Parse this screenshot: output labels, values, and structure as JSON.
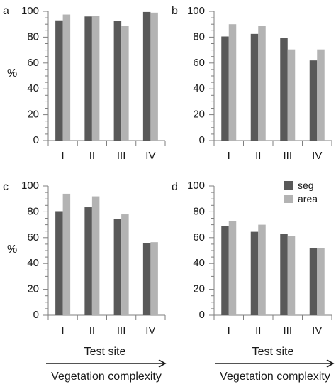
{
  "figure": {
    "xlabel": "Test site",
    "arrow_label": "Vegetation complexity",
    "ylabel": "%",
    "colors": {
      "seg": "#595959",
      "area": "#b3b3b3",
      "axis": "#7f7f7f"
    }
  },
  "legend": {
    "items": [
      {
        "name": "seg",
        "color": "#595959"
      },
      {
        "name": "area",
        "color": "#b3b3b3"
      }
    ]
  },
  "chart_data": [
    {
      "type": "bar",
      "panel": "a",
      "categories": [
        "I",
        "II",
        "III",
        "IV"
      ],
      "series": [
        {
          "name": "seg",
          "values": [
            93,
            96,
            92.5,
            99.5
          ]
        },
        {
          "name": "area",
          "values": [
            97.5,
            96.5,
            89,
            99
          ]
        }
      ],
      "ylabel": "%",
      "ylim": [
        0,
        100
      ],
      "yticks": [
        "0",
        "20",
        "40",
        "60",
        "80",
        "100"
      ]
    },
    {
      "type": "bar",
      "panel": "b",
      "categories": [
        "I",
        "II",
        "III",
        "IV"
      ],
      "series": [
        {
          "name": "seg",
          "values": [
            80.5,
            82.5,
            79.5,
            62
          ]
        },
        {
          "name": "area",
          "values": [
            90,
            89,
            70.5,
            70.5
          ]
        }
      ],
      "ylim": [
        0,
        100
      ],
      "yticks": [
        "0",
        "20",
        "40",
        "60",
        "80",
        "100"
      ]
    },
    {
      "type": "bar",
      "panel": "c",
      "categories": [
        "I",
        "II",
        "III",
        "IV"
      ],
      "series": [
        {
          "name": "seg",
          "values": [
            80.5,
            83.5,
            74.5,
            55.5
          ]
        },
        {
          "name": "area",
          "values": [
            94,
            92,
            78,
            56.5
          ]
        }
      ],
      "ylabel": "%",
      "xlabel": "Test site",
      "ylim": [
        0,
        100
      ],
      "yticks": [
        "0",
        "20",
        "40",
        "60",
        "80",
        "100"
      ]
    },
    {
      "type": "bar",
      "panel": "d",
      "categories": [
        "I",
        "II",
        "III",
        "IV"
      ],
      "series": [
        {
          "name": "seg",
          "values": [
            69,
            64.5,
            63,
            52
          ]
        },
        {
          "name": "area",
          "values": [
            73,
            70,
            61,
            52
          ]
        }
      ],
      "xlabel": "Test site",
      "ylim": [
        0,
        100
      ],
      "yticks": [
        "0",
        "20",
        "40",
        "60",
        "80",
        "100"
      ]
    }
  ]
}
